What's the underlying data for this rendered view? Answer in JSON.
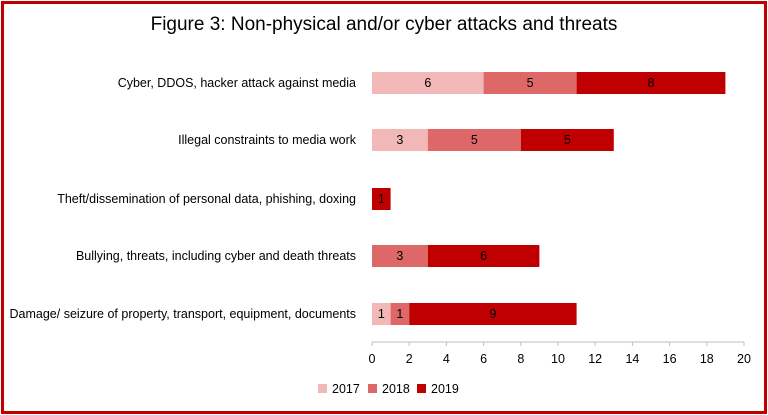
{
  "chart_data": {
    "type": "bar",
    "orientation": "horizontal",
    "stacked": true,
    "title": "Figure 3: Non-physical and/or cyber attacks and threats",
    "categories": [
      "Cyber, DDOS, hacker attack against media",
      "Illegal constraints to media work",
      "Theft/dissemination of personal data, phishing, doxing",
      "Bullying, threats, including cyber and death threats",
      "Damage/ seizure of property, transport, equipment, documents"
    ],
    "series": [
      {
        "name": "2017",
        "color": "#f2b8b8",
        "values": [
          6,
          3,
          0,
          0,
          1
        ]
      },
      {
        "name": "2018",
        "color": "#de6767",
        "values": [
          5,
          5,
          0,
          3,
          1
        ]
      },
      {
        "name": "2019",
        "color": "#c00000",
        "values": [
          8,
          5,
          1,
          6,
          9
        ]
      }
    ],
    "xlim": [
      0,
      20
    ],
    "xticks": [
      "0",
      "2",
      "4",
      "6",
      "8",
      "10",
      "12",
      "14",
      "16",
      "18",
      "20"
    ],
    "grid": false,
    "legend_position": "bottom",
    "frame_color": "#c00000"
  }
}
